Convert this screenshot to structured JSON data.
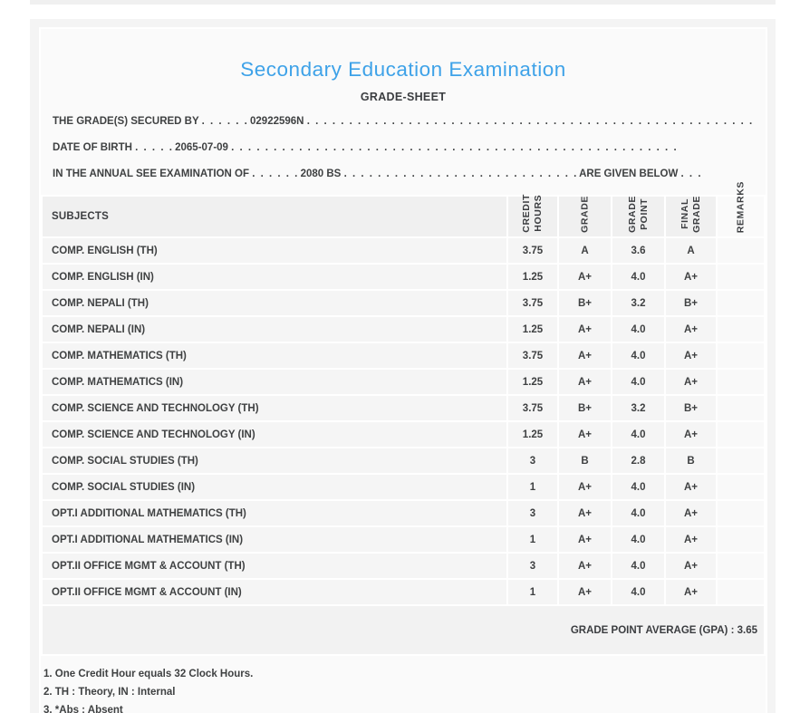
{
  "colors": {
    "title_blue": "#3ea2e8",
    "text": "#3f4142",
    "card_bg": "#fafafa",
    "panel_bg": "#f4f4f4",
    "row_bg": "#f5f5f5",
    "header_band_bg": "#f0f0f0"
  },
  "header": {
    "title": "Secondary Education Examination",
    "subtitle": "GRADE-SHEET"
  },
  "statements": [
    {
      "label": "THE GRADE(S) SECURED BY",
      "dots1": ". . . . . .",
      "value": "02922596N",
      "dots2": ". . . . . . . . . . . . . . . . . . . . . . . . . . . . . . . . . . . . . . . . . . . . . . . . . . . . .",
      "suffix": "",
      "dots3": ""
    },
    {
      "label": "DATE OF BIRTH",
      "dots1": ". . . . .",
      "value": "2065-07-09",
      "dots2": ". . . . . . . . . . . . . . . . . . . . . . . . . . . . . . . . . . . . . . . . . . . . . . . . . . . . .",
      "suffix": "",
      "dots3": ""
    },
    {
      "label": "IN THE ANNUAL SEE EXAMINATION OF",
      "dots1": ". . . . . .",
      "value": "2080 BS",
      "dots2": ". . . . . . . . . . . . . . . . . . . . . . . . . . . .",
      "suffix": "ARE GIVEN BELOW",
      "dots3": ". . ."
    }
  ],
  "table": {
    "headers": {
      "subjects": "SUBJECTS",
      "credit_hours": "CREDIT\nHOURS",
      "grade": "GRADE",
      "grade_point": "GRADE\nPOINT",
      "final_grade": "FINAL\nGRADE",
      "remarks": "REMARKS"
    },
    "rows": [
      {
        "subject": "COMP. ENGLISH (TH)",
        "credit_hours": "3.75",
        "grade": "A",
        "grade_point": "3.6",
        "final_grade": "A",
        "remarks": ""
      },
      {
        "subject": "COMP. ENGLISH (IN)",
        "credit_hours": "1.25",
        "grade": "A+",
        "grade_point": "4.0",
        "final_grade": "A+",
        "remarks": ""
      },
      {
        "subject": "COMP. NEPALI (TH)",
        "credit_hours": "3.75",
        "grade": "B+",
        "grade_point": "3.2",
        "final_grade": "B+",
        "remarks": ""
      },
      {
        "subject": "COMP. NEPALI (IN)",
        "credit_hours": "1.25",
        "grade": "A+",
        "grade_point": "4.0",
        "final_grade": "A+",
        "remarks": ""
      },
      {
        "subject": "COMP. MATHEMATICS (TH)",
        "credit_hours": "3.75",
        "grade": "A+",
        "grade_point": "4.0",
        "final_grade": "A+",
        "remarks": ""
      },
      {
        "subject": "COMP. MATHEMATICS (IN)",
        "credit_hours": "1.25",
        "grade": "A+",
        "grade_point": "4.0",
        "final_grade": "A+",
        "remarks": ""
      },
      {
        "subject": "COMP. SCIENCE AND TECHNOLOGY (TH)",
        "credit_hours": "3.75",
        "grade": "B+",
        "grade_point": "3.2",
        "final_grade": "B+",
        "remarks": ""
      },
      {
        "subject": "COMP. SCIENCE AND TECHNOLOGY (IN)",
        "credit_hours": "1.25",
        "grade": "A+",
        "grade_point": "4.0",
        "final_grade": "A+",
        "remarks": ""
      },
      {
        "subject": "COMP. SOCIAL STUDIES (TH)",
        "credit_hours": "3",
        "grade": "B",
        "grade_point": "2.8",
        "final_grade": "B",
        "remarks": ""
      },
      {
        "subject": "COMP. SOCIAL STUDIES (IN)",
        "credit_hours": "1",
        "grade": "A+",
        "grade_point": "4.0",
        "final_grade": "A+",
        "remarks": ""
      },
      {
        "subject": "OPT.I ADDITIONAL MATHEMATICS (TH)",
        "credit_hours": "3",
        "grade": "A+",
        "grade_point": "4.0",
        "final_grade": "A+",
        "remarks": ""
      },
      {
        "subject": "OPT.I ADDITIONAL MATHEMATICS (IN)",
        "credit_hours": "1",
        "grade": "A+",
        "grade_point": "4.0",
        "final_grade": "A+",
        "remarks": ""
      },
      {
        "subject": "OPT.II OFFICE MGMT & ACCOUNT (TH)",
        "credit_hours": "3",
        "grade": "A+",
        "grade_point": "4.0",
        "final_grade": "A+",
        "remarks": ""
      },
      {
        "subject": "OPT.II OFFICE MGMT & ACCOUNT (IN)",
        "credit_hours": "1",
        "grade": "A+",
        "grade_point": "4.0",
        "final_grade": "A+",
        "remarks": ""
      }
    ],
    "footer": {
      "gpa_label": "GRADE POINT AVERAGE (GPA) : 3.65"
    }
  },
  "footnotes": [
    "1. One Credit Hour equals 32 Clock Hours.",
    "2. TH : Theory, IN : Internal",
    "3. *Abs : Absent"
  ]
}
